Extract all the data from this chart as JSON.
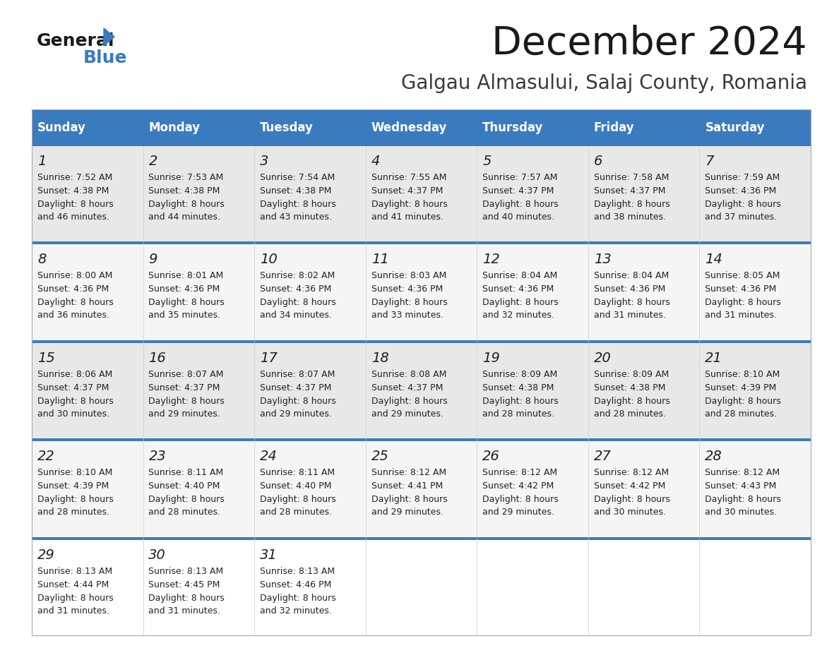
{
  "title": "December 2024",
  "subtitle": "Galgau Almasului, Salaj County, Romania",
  "header_color": "#3a7bbf",
  "header_text_color": "#ffffff",
  "day_names": [
    "Sunday",
    "Monday",
    "Tuesday",
    "Wednesday",
    "Thursday",
    "Friday",
    "Saturday"
  ],
  "bg_color": "#ffffff",
  "cell_bg_row0": "#e8e8e8",
  "cell_bg_row1": "#f5f5f5",
  "cell_bg_row2": "#e8e8e8",
  "cell_bg_row3": "#f5f5f5",
  "cell_bg_row4": "#ffffff",
  "separator_color": "#3a7bbf",
  "text_color": "#222222",
  "days": [
    {
      "day": 1,
      "col": 0,
      "row": 0,
      "sunrise": "7:52 AM",
      "sunset": "4:38 PM",
      "daylight_h": "Daylight: 8 hours",
      "daylight_m": "and 46 minutes."
    },
    {
      "day": 2,
      "col": 1,
      "row": 0,
      "sunrise": "7:53 AM",
      "sunset": "4:38 PM",
      "daylight_h": "Daylight: 8 hours",
      "daylight_m": "and 44 minutes."
    },
    {
      "day": 3,
      "col": 2,
      "row": 0,
      "sunrise": "7:54 AM",
      "sunset": "4:38 PM",
      "daylight_h": "Daylight: 8 hours",
      "daylight_m": "and 43 minutes."
    },
    {
      "day": 4,
      "col": 3,
      "row": 0,
      "sunrise": "7:55 AM",
      "sunset": "4:37 PM",
      "daylight_h": "Daylight: 8 hours",
      "daylight_m": "and 41 minutes."
    },
    {
      "day": 5,
      "col": 4,
      "row": 0,
      "sunrise": "7:57 AM",
      "sunset": "4:37 PM",
      "daylight_h": "Daylight: 8 hours",
      "daylight_m": "and 40 minutes."
    },
    {
      "day": 6,
      "col": 5,
      "row": 0,
      "sunrise": "7:58 AM",
      "sunset": "4:37 PM",
      "daylight_h": "Daylight: 8 hours",
      "daylight_m": "and 38 minutes."
    },
    {
      "day": 7,
      "col": 6,
      "row": 0,
      "sunrise": "7:59 AM",
      "sunset": "4:36 PM",
      "daylight_h": "Daylight: 8 hours",
      "daylight_m": "and 37 minutes."
    },
    {
      "day": 8,
      "col": 0,
      "row": 1,
      "sunrise": "8:00 AM",
      "sunset": "4:36 PM",
      "daylight_h": "Daylight: 8 hours",
      "daylight_m": "and 36 minutes."
    },
    {
      "day": 9,
      "col": 1,
      "row": 1,
      "sunrise": "8:01 AM",
      "sunset": "4:36 PM",
      "daylight_h": "Daylight: 8 hours",
      "daylight_m": "and 35 minutes."
    },
    {
      "day": 10,
      "col": 2,
      "row": 1,
      "sunrise": "8:02 AM",
      "sunset": "4:36 PM",
      "daylight_h": "Daylight: 8 hours",
      "daylight_m": "and 34 minutes."
    },
    {
      "day": 11,
      "col": 3,
      "row": 1,
      "sunrise": "8:03 AM",
      "sunset": "4:36 PM",
      "daylight_h": "Daylight: 8 hours",
      "daylight_m": "and 33 minutes."
    },
    {
      "day": 12,
      "col": 4,
      "row": 1,
      "sunrise": "8:04 AM",
      "sunset": "4:36 PM",
      "daylight_h": "Daylight: 8 hours",
      "daylight_m": "and 32 minutes."
    },
    {
      "day": 13,
      "col": 5,
      "row": 1,
      "sunrise": "8:04 AM",
      "sunset": "4:36 PM",
      "daylight_h": "Daylight: 8 hours",
      "daylight_m": "and 31 minutes."
    },
    {
      "day": 14,
      "col": 6,
      "row": 1,
      "sunrise": "8:05 AM",
      "sunset": "4:36 PM",
      "daylight_h": "Daylight: 8 hours",
      "daylight_m": "and 31 minutes."
    },
    {
      "day": 15,
      "col": 0,
      "row": 2,
      "sunrise": "8:06 AM",
      "sunset": "4:37 PM",
      "daylight_h": "Daylight: 8 hours",
      "daylight_m": "and 30 minutes."
    },
    {
      "day": 16,
      "col": 1,
      "row": 2,
      "sunrise": "8:07 AM",
      "sunset": "4:37 PM",
      "daylight_h": "Daylight: 8 hours",
      "daylight_m": "and 29 minutes."
    },
    {
      "day": 17,
      "col": 2,
      "row": 2,
      "sunrise": "8:07 AM",
      "sunset": "4:37 PM",
      "daylight_h": "Daylight: 8 hours",
      "daylight_m": "and 29 minutes."
    },
    {
      "day": 18,
      "col": 3,
      "row": 2,
      "sunrise": "8:08 AM",
      "sunset": "4:37 PM",
      "daylight_h": "Daylight: 8 hours",
      "daylight_m": "and 29 minutes."
    },
    {
      "day": 19,
      "col": 4,
      "row": 2,
      "sunrise": "8:09 AM",
      "sunset": "4:38 PM",
      "daylight_h": "Daylight: 8 hours",
      "daylight_m": "and 28 minutes."
    },
    {
      "day": 20,
      "col": 5,
      "row": 2,
      "sunrise": "8:09 AM",
      "sunset": "4:38 PM",
      "daylight_h": "Daylight: 8 hours",
      "daylight_m": "and 28 minutes."
    },
    {
      "day": 21,
      "col": 6,
      "row": 2,
      "sunrise": "8:10 AM",
      "sunset": "4:39 PM",
      "daylight_h": "Daylight: 8 hours",
      "daylight_m": "and 28 minutes."
    },
    {
      "day": 22,
      "col": 0,
      "row": 3,
      "sunrise": "8:10 AM",
      "sunset": "4:39 PM",
      "daylight_h": "Daylight: 8 hours",
      "daylight_m": "and 28 minutes."
    },
    {
      "day": 23,
      "col": 1,
      "row": 3,
      "sunrise": "8:11 AM",
      "sunset": "4:40 PM",
      "daylight_h": "Daylight: 8 hours",
      "daylight_m": "and 28 minutes."
    },
    {
      "day": 24,
      "col": 2,
      "row": 3,
      "sunrise": "8:11 AM",
      "sunset": "4:40 PM",
      "daylight_h": "Daylight: 8 hours",
      "daylight_m": "and 28 minutes."
    },
    {
      "day": 25,
      "col": 3,
      "row": 3,
      "sunrise": "8:12 AM",
      "sunset": "4:41 PM",
      "daylight_h": "Daylight: 8 hours",
      "daylight_m": "and 29 minutes."
    },
    {
      "day": 26,
      "col": 4,
      "row": 3,
      "sunrise": "8:12 AM",
      "sunset": "4:42 PM",
      "daylight_h": "Daylight: 8 hours",
      "daylight_m": "and 29 minutes."
    },
    {
      "day": 27,
      "col": 5,
      "row": 3,
      "sunrise": "8:12 AM",
      "sunset": "4:42 PM",
      "daylight_h": "Daylight: 8 hours",
      "daylight_m": "and 30 minutes."
    },
    {
      "day": 28,
      "col": 6,
      "row": 3,
      "sunrise": "8:12 AM",
      "sunset": "4:43 PM",
      "daylight_h": "Daylight: 8 hours",
      "daylight_m": "and 30 minutes."
    },
    {
      "day": 29,
      "col": 0,
      "row": 4,
      "sunrise": "8:13 AM",
      "sunset": "4:44 PM",
      "daylight_h": "Daylight: 8 hours",
      "daylight_m": "and 31 minutes."
    },
    {
      "day": 30,
      "col": 1,
      "row": 4,
      "sunrise": "8:13 AM",
      "sunset": "4:45 PM",
      "daylight_h": "Daylight: 8 hours",
      "daylight_m": "and 31 minutes."
    },
    {
      "day": 31,
      "col": 2,
      "row": 4,
      "sunrise": "8:13 AM",
      "sunset": "4:46 PM",
      "daylight_h": "Daylight: 8 hours",
      "daylight_m": "and 32 minutes."
    }
  ]
}
